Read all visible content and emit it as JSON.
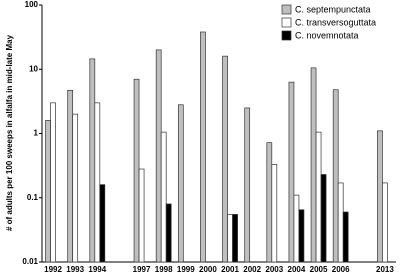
{
  "chart_data": {
    "type": "bar",
    "y_label": "# of adults per 100 sweeps in alfalfa in mid-late May",
    "categories": [
      "1992",
      "1993",
      "1994",
      null,
      "1997",
      "1998",
      "1999",
      "2000",
      "2001",
      "2002",
      "2003",
      "2004",
      "2005",
      "2006",
      null,
      "2013"
    ],
    "series": [
      {
        "name": "C. septempunctata",
        "color": "#bfbfbf",
        "values": [
          1.6,
          4.7,
          14.5,
          null,
          7,
          20,
          2.8,
          38,
          16,
          2.5,
          0.72,
          6.3,
          10.5,
          4.8,
          null,
          1.1
        ]
      },
      {
        "name": "C. transversoguttata",
        "color": "#ffffff",
        "values": [
          3.0,
          2.0,
          3.0,
          null,
          0.28,
          1.05,
          null,
          null,
          0.055,
          null,
          0.33,
          0.11,
          1.05,
          0.17,
          null,
          0.17
        ]
      },
      {
        "name": "C. novemnotata",
        "color": "#000000",
        "values": [
          null,
          null,
          0.16,
          null,
          null,
          0.08,
          null,
          null,
          0.055,
          null,
          null,
          0.065,
          0.23,
          0.06,
          null,
          null
        ]
      }
    ],
    "ylim": [
      0.01,
      100
    ],
    "yticks": [
      0.01,
      0.1,
      1,
      10,
      100
    ],
    "log_scale": true,
    "legend": "top-right"
  }
}
